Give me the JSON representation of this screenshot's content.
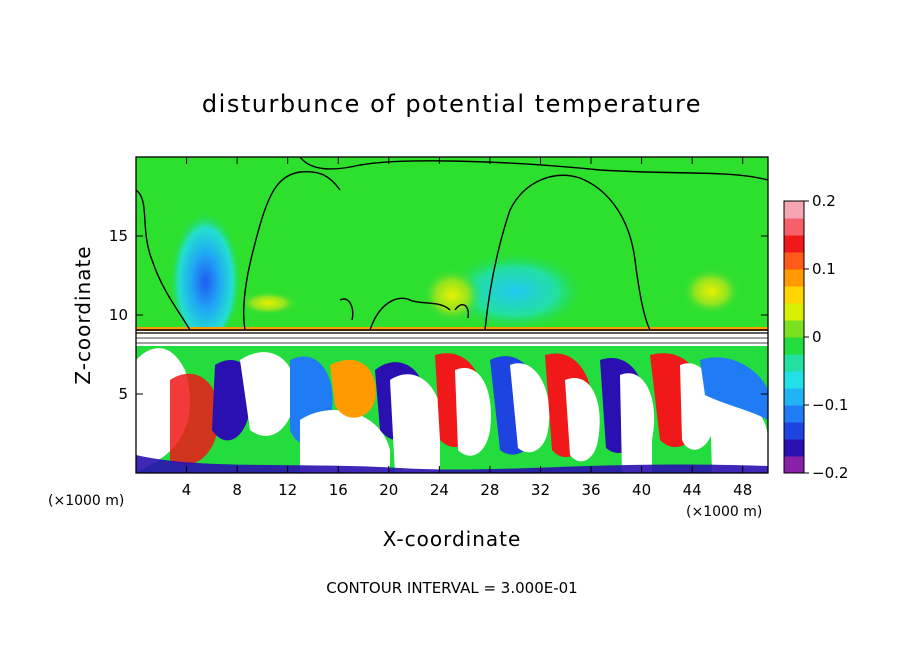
{
  "chart_data": {
    "type": "heatmap",
    "title": "disturbunce of potential temperature",
    "xlabel": "X-coordinate",
    "ylabel": "Z-coordinate",
    "x_unit": "(×1000 m)",
    "y_unit": "(×1000 m)",
    "xlim": [
      0,
      50
    ],
    "ylim": [
      0,
      20
    ],
    "x_ticks": [
      4,
      8,
      12,
      16,
      20,
      24,
      28,
      32,
      36,
      40,
      44,
      48
    ],
    "y_ticks": [
      5,
      10,
      15
    ],
    "colorbar": {
      "min": -0.2,
      "max": 0.2,
      "ticks": [
        0.2,
        0.1,
        0,
        -0.1,
        -0.2
      ],
      "tick_labels": [
        "0.2",
        "0.1",
        "0",
        "−0.1",
        "−0.2"
      ],
      "colors": [
        "#8a1fa8",
        "#2a10b0",
        "#1d43e0",
        "#1f7cf5",
        "#20b4f5",
        "#22e0e8",
        "#21e0a0",
        "#22dd3d",
        "#7ae020",
        "#d8f000",
        "#ffd500",
        "#ff9a00",
        "#ff5a1a",
        "#f01818",
        "#f5606a",
        "#f5a6b0"
      ]
    },
    "contour_interval_note": "CONTOUR INTERVAL = 3.000E-01",
    "background_field": 0,
    "features": [
      {
        "kind": "cold-plume",
        "x_center": 5.5,
        "z_range": [
          8.5,
          17.5
        ],
        "value": -0.12
      },
      {
        "kind": "cool-dome",
        "x_center": 30,
        "z_range": [
          9,
          14
        ],
        "value": -0.05
      },
      {
        "kind": "warm-patch",
        "x_center": 10.5,
        "z_range": [
          10,
          11.5
        ],
        "value": 0.05
      },
      {
        "kind": "warm-patch",
        "x_center": 25,
        "z_range": [
          9.5,
          13
        ],
        "value": 0.03
      },
      {
        "kind": "warm-patch",
        "x_center": 45.5,
        "z_range": [
          10,
          13
        ],
        "value": 0.03
      },
      {
        "kind": "tropopause-band",
        "z": 9,
        "value": 0.1
      }
    ]
  }
}
